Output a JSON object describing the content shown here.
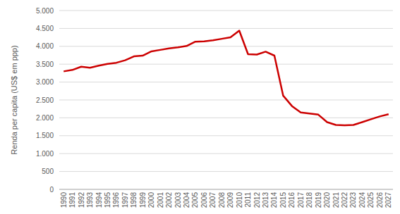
{
  "chart_data": {
    "type": "line",
    "y_label": "Renda per capita (US$ em ppp)",
    "categories": [
      "1990",
      "1991",
      "1992",
      "1993",
      "1994",
      "1995",
      "1996",
      "1997",
      "1998",
      "1999",
      "2000",
      "2001",
      "2002",
      "2003",
      "2004",
      "2005",
      "2006",
      "2007",
      "2008",
      "2009",
      "2010",
      "2011",
      "2012",
      "2013",
      "2014",
      "2015",
      "2016",
      "2017",
      "2018",
      "2019",
      "2020",
      "2021",
      "2022",
      "2023",
      "2024",
      "2025",
      "2026",
      "2027"
    ],
    "values": [
      3300,
      3340,
      3430,
      3400,
      3460,
      3510,
      3540,
      3610,
      3720,
      3740,
      3860,
      3900,
      3940,
      3970,
      4010,
      4130,
      4140,
      4170,
      4210,
      4250,
      4440,
      3780,
      3770,
      3850,
      3740,
      2620,
      2330,
      2150,
      2120,
      2090,
      1880,
      1800,
      1790,
      1800,
      1880,
      1960,
      2040,
      2100
    ],
    "color": "#cc0000",
    "ylim": [
      0,
      5000
    ],
    "yticks": [
      0,
      500,
      {
        "value": 1000,
        "label": "1.000"
      },
      {
        "value": 1500,
        "label": "1.500"
      },
      {
        "value": 2000,
        "label": "2.000"
      },
      {
        "value": 2500,
        "label": "2.500"
      },
      {
        "value": 3000,
        "label": "3.000"
      },
      {
        "value": 3500,
        "label": "3.500"
      },
      {
        "value": 4000,
        "label": "4.000"
      },
      {
        "value": 4500,
        "label": "4.500"
      },
      {
        "value": 5000,
        "label": "5.000"
      }
    ],
    "grid": true
  }
}
